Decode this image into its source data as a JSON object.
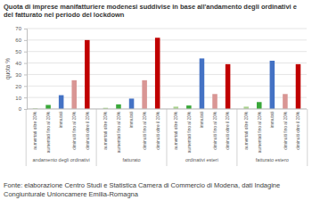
{
  "chart_data": {
    "type": "bar",
    "title": "Quota di imprese manifatturiere modenesi suddivise in base all'andamento degli ordinativi e del fatturato nel periodo del lockdown",
    "source": "Fonte: elaborazione Centro Studi e Statistica Camera di Commercio di Modena, dati Indagine Congiunturale Unioncamere Emilia-Romagna",
    "y_label": "quota %",
    "categories": [
      "andamento degli ordinativi",
      "fatturato",
      "ordinativi esteri",
      "fatturato estero"
    ],
    "series": [
      {
        "name": "aumentati oltre 20%",
        "color": "#a9d18e",
        "values": [
          0.5,
          1,
          2,
          2
        ]
      },
      {
        "name": "aumentati fino al 20%",
        "color": "#3aa83a",
        "values": [
          3.5,
          4,
          3,
          6
        ]
      },
      {
        "name": "immutati",
        "color": "#4472c4",
        "values": [
          12,
          9,
          44,
          42
        ]
      },
      {
        "name": "diminuiti fino al 20%",
        "color": "#d99694",
        "values": [
          25,
          25,
          13,
          13
        ]
      },
      {
        "name": "diminuiti oltre il 20%",
        "color": "#c00000",
        "values": [
          60,
          62,
          39,
          39
        ]
      }
    ],
    "ylim": [
      0,
      70
    ],
    "yticks": [
      0,
      10,
      20,
      30,
      40,
      50,
      60,
      70
    ],
    "grid": true
  }
}
